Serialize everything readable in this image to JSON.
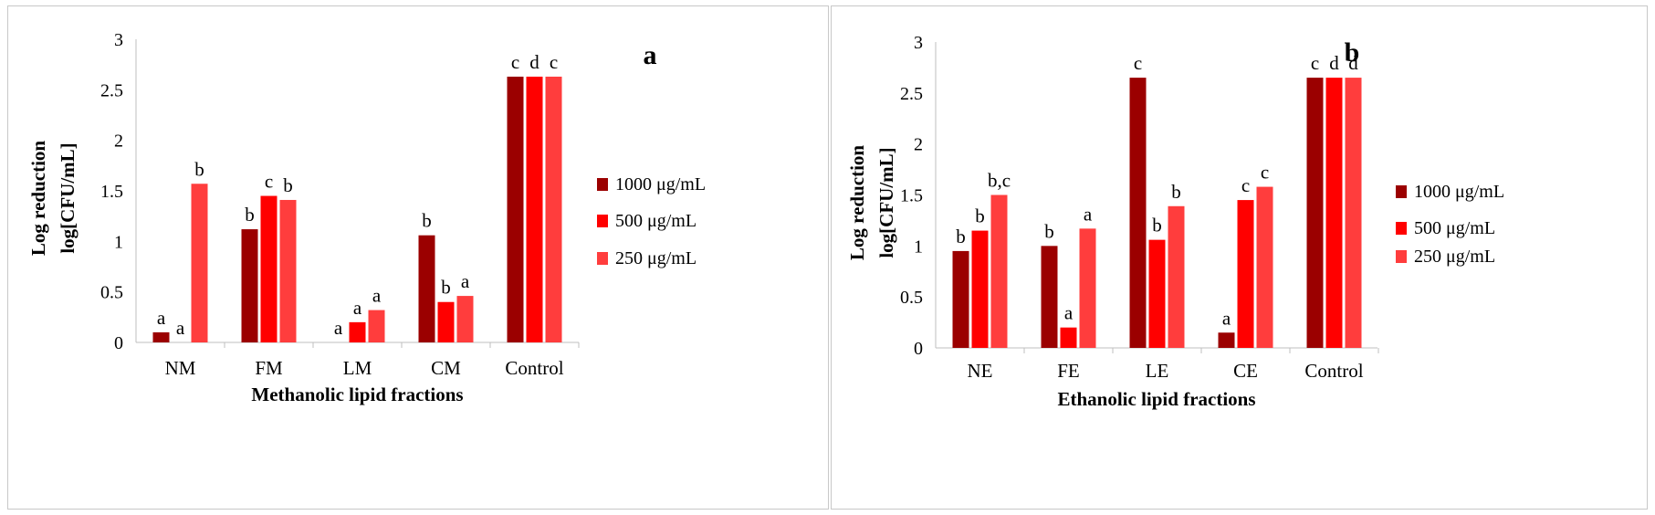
{
  "colors": [
    "#9b0000",
    "#ff0000",
    "#ff3d3d"
  ],
  "chart_data": [
    {
      "type": "bar",
      "panel_label": "a",
      "xlabel": "Methanolic lipid fractions",
      "ylabel_line1": "Log reduction",
      "ylabel_line2": "log[CFU/mL]",
      "ylim": [
        0,
        3
      ],
      "yticks": [
        "0",
        "0.5",
        "1",
        "1.5",
        "2",
        "2.5",
        "3"
      ],
      "categories": [
        "NM",
        "FM",
        "LM",
        "CM",
        "Control"
      ],
      "legend_position": "right",
      "series": [
        {
          "name": "1000 μg/mL",
          "values": [
            0.1,
            1.12,
            0,
            1.06,
            2.63
          ],
          "letters": [
            "a",
            "b",
            "a",
            "b",
            "c"
          ]
        },
        {
          "name": "500 μg/mL",
          "values": [
            0,
            1.45,
            0.2,
            0.4,
            2.63
          ],
          "letters": [
            "a",
            "c",
            "a",
            "b",
            "d"
          ]
        },
        {
          "name": "250 μg/mL",
          "values": [
            1.57,
            1.41,
            0.32,
            0.46,
            2.63
          ],
          "letters": [
            "b",
            "b",
            "a",
            "a",
            "c"
          ]
        }
      ]
    },
    {
      "type": "bar",
      "panel_label": "b",
      "xlabel": "Ethanolic lipid fractions",
      "ylabel_line1": "Log reduction",
      "ylabel_line2": "log[CFU/mL]",
      "ylim": [
        0,
        3
      ],
      "yticks": [
        "0",
        "0.5",
        "1",
        "1.5",
        "2",
        "2.5",
        "3"
      ],
      "categories": [
        "NE",
        "FE",
        "LE",
        "CE",
        "Control"
      ],
      "legend_position": "right",
      "series": [
        {
          "name": "1000 μg/mL",
          "values": [
            0.95,
            1.0,
            2.65,
            0.15,
            2.65
          ],
          "letters": [
            "b",
            "b",
            "c",
            "a",
            "c"
          ]
        },
        {
          "name": "500 μg/mL",
          "values": [
            1.15,
            0.2,
            1.06,
            1.45,
            2.65
          ],
          "letters": [
            "b",
            "a",
            "b",
            "c",
            "d"
          ]
        },
        {
          "name": "250 μg/mL",
          "values": [
            1.5,
            1.17,
            1.39,
            1.58,
            2.65
          ],
          "letters": [
            "b,c",
            "a",
            "b",
            "c",
            "d"
          ]
        }
      ]
    }
  ]
}
